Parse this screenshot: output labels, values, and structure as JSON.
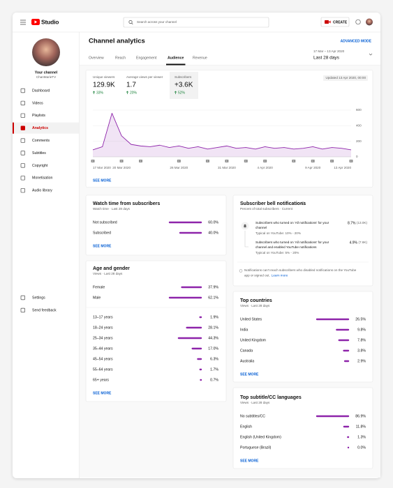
{
  "header": {
    "logo": "Studio",
    "search_placeholder": "Search across your channel",
    "create": "CREATE"
  },
  "sidebar": {
    "channel_title": "Your channel",
    "channel_name": "ChanMarieTV",
    "menu": [
      "Dashboard",
      "Videos",
      "Playlists",
      "Analytics",
      "Comments",
      "Subtitles",
      "Copyright",
      "Monetisation",
      "Audio library"
    ],
    "footer_menu": [
      "Settings",
      "Send feedback"
    ]
  },
  "page": {
    "title": "Channel analytics",
    "advanced_mode": "ADVANCED MODE",
    "tabs": [
      "Overview",
      "Reach",
      "Engagement",
      "Audience",
      "Revenue"
    ],
    "date_range": "17 Mar – 13 Apr 2020",
    "period": "Last 28 days"
  },
  "overview": {
    "metrics": [
      {
        "label": "Unique viewers",
        "value": "129.9K",
        "change": "33%"
      },
      {
        "label": "Average views per viewer",
        "value": "1.7",
        "change": "20%"
      },
      {
        "label": "Subscribers",
        "value": "+3.6K",
        "change": "52%"
      }
    ],
    "updated": "Updated 13 Apr 2020, 00:00",
    "see_more": "SEE MORE"
  },
  "chart_data": {
    "type": "line",
    "color": "#8e24aa",
    "grid": true,
    "categories": [
      "17 Mar 2020",
      null,
      null,
      "20 Mar 2020",
      null,
      null,
      null,
      null,
      null,
      "26 Mar 2020",
      null,
      null,
      null,
      null,
      "31 Mar 2020",
      null,
      null,
      null,
      "4 Apr 2020",
      null,
      null,
      null,
      null,
      "9 Apr 2020",
      null,
      null,
      null,
      "13 Apr 2020"
    ],
    "values": [
      90,
      130,
      560,
      270,
      160,
      140,
      130,
      150,
      120,
      140,
      110,
      130,
      100,
      120,
      140,
      110,
      120,
      100,
      130,
      110,
      120,
      100,
      110,
      130,
      100,
      120,
      110,
      90
    ],
    "ylim": [
      0,
      600
    ],
    "yticks": [
      0,
      200,
      400,
      600
    ]
  },
  "watch_time": {
    "title": "Watch time from subscribers",
    "subtitle": "Watch time · Last 28 days",
    "categories": [
      "Not subscribed",
      "Subscribed"
    ],
    "values": [
      60.0,
      40.0
    ],
    "value_labels": [
      "60.0%",
      "40.0%"
    ],
    "see_more": "SEE MORE"
  },
  "age_gender": {
    "title": "Age and gender",
    "subtitle": "Views · Last 28 days",
    "gender": {
      "categories": [
        "Female",
        "Male"
      ],
      "values": [
        37.9,
        62.1
      ],
      "value_labels": [
        "37.9%",
        "62.1%"
      ]
    },
    "age": {
      "categories": [
        "13–17 years",
        "18–24 years",
        "25–34 years",
        "35–44 years",
        "45–54 years",
        "55–64 years",
        "65+ years"
      ],
      "values": [
        1.9,
        28.1,
        44.3,
        17.0,
        6.3,
        1.7,
        0.7
      ],
      "value_labels": [
        "1.9%",
        "28.1%",
        "44.3%",
        "17.0%",
        "6.3%",
        "1.7%",
        "0.7%"
      ]
    },
    "see_more": "SEE MORE"
  },
  "bell": {
    "title": "Subscriber bell notifications",
    "subtitle": "Percent of total subscribers · Current",
    "items": [
      {
        "text": [
          "Subscribers who turned on 'All notifications' for your",
          "channel"
        ],
        "typical": "Typical on YouTube: 10% - 20%",
        "stat": "8.7%",
        "count": "(13.0K)"
      },
      {
        "text": [
          "Subscribers who turned on 'All notifications' for your",
          "channel and enabled YouTube notifications"
        ],
        "typical": "Typical on YouTube: 5% - 20%",
        "stat": "4.9%",
        "count": "(7.6K)"
      }
    ],
    "note": [
      "Notifications can't reach subscribers who disabled notifications on the YouTube",
      "app or signed out."
    ],
    "learn_more": "Learn more"
  },
  "countries": {
    "title": "Top countries",
    "subtitle": "Views · Last 28 days",
    "categories": [
      "United States",
      "India",
      "United Kingdom",
      "Canada",
      "Australia"
    ],
    "values": [
      26.5,
      9.8,
      7.8,
      3.8,
      2.9
    ],
    "value_labels": [
      "26.5%",
      "9.8%",
      "7.8%",
      "3.8%",
      "2.9%"
    ],
    "see_more": "SEE MORE"
  },
  "languages": {
    "title": "Top subtitle/CC languages",
    "subtitle": "Views · Last 28 days",
    "categories": [
      "No subtitles/CC",
      "English",
      "English (United Kingdom)",
      "Portuguese (Brazil)"
    ],
    "values": [
      86.9,
      11.8,
      1.3,
      0.0
    ],
    "value_labels": [
      "86.9%",
      "11.8%",
      "1.3%",
      "0.0%"
    ],
    "see_more": "SEE MORE"
  }
}
